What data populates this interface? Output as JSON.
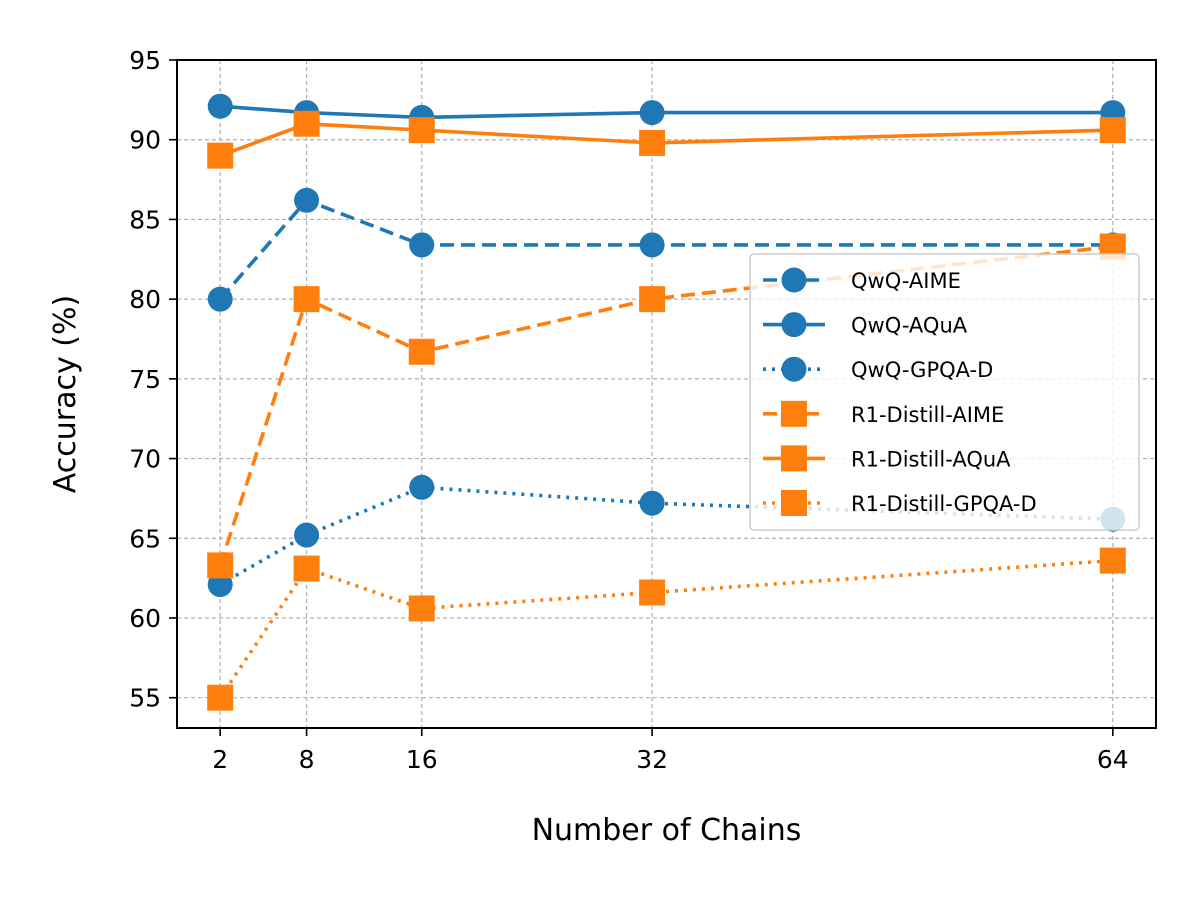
{
  "chart_data": {
    "type": "line",
    "title": "",
    "xlabel": "Number of Chains",
    "ylabel": "Accuracy (%)",
    "x": [
      2,
      8,
      16,
      32,
      64
    ],
    "xlim": [
      -1,
      67
    ],
    "ylim": [
      53.1,
      95
    ],
    "xticks": [
      2,
      8,
      16,
      32,
      64
    ],
    "yticks": [
      55,
      60,
      65,
      70,
      75,
      80,
      85,
      90,
      95
    ],
    "grid": true,
    "legend_position": "center-right",
    "series": [
      {
        "name": "QwQ-AIME",
        "color": "#1f77b4",
        "marker": "circle",
        "linestyle": "dashed",
        "values": [
          80.0,
          86.2,
          83.4,
          83.4,
          83.4
        ]
      },
      {
        "name": "QwQ-AQuA",
        "color": "#1f77b4",
        "marker": "circle",
        "linestyle": "solid",
        "values": [
          92.1,
          91.7,
          91.4,
          91.7,
          91.7
        ]
      },
      {
        "name": "QwQ-GPQA-D",
        "color": "#1f77b4",
        "marker": "circle",
        "linestyle": "dotted",
        "values": [
          62.1,
          65.2,
          68.2,
          67.2,
          66.2
        ]
      },
      {
        "name": "R1-Distill-AIME",
        "color": "#ff7f0e",
        "marker": "square",
        "linestyle": "dashed",
        "values": [
          63.3,
          80.0,
          76.7,
          80.0,
          83.3
        ]
      },
      {
        "name": "R1-Distill-AQuA",
        "color": "#ff7f0e",
        "marker": "square",
        "linestyle": "solid",
        "values": [
          89.0,
          91.0,
          90.6,
          89.8,
          90.6
        ]
      },
      {
        "name": "R1-Distill-GPQA-D",
        "color": "#ff7f0e",
        "marker": "square",
        "linestyle": "dotted",
        "values": [
          55.0,
          63.1,
          60.6,
          61.6,
          63.6
        ]
      }
    ]
  }
}
